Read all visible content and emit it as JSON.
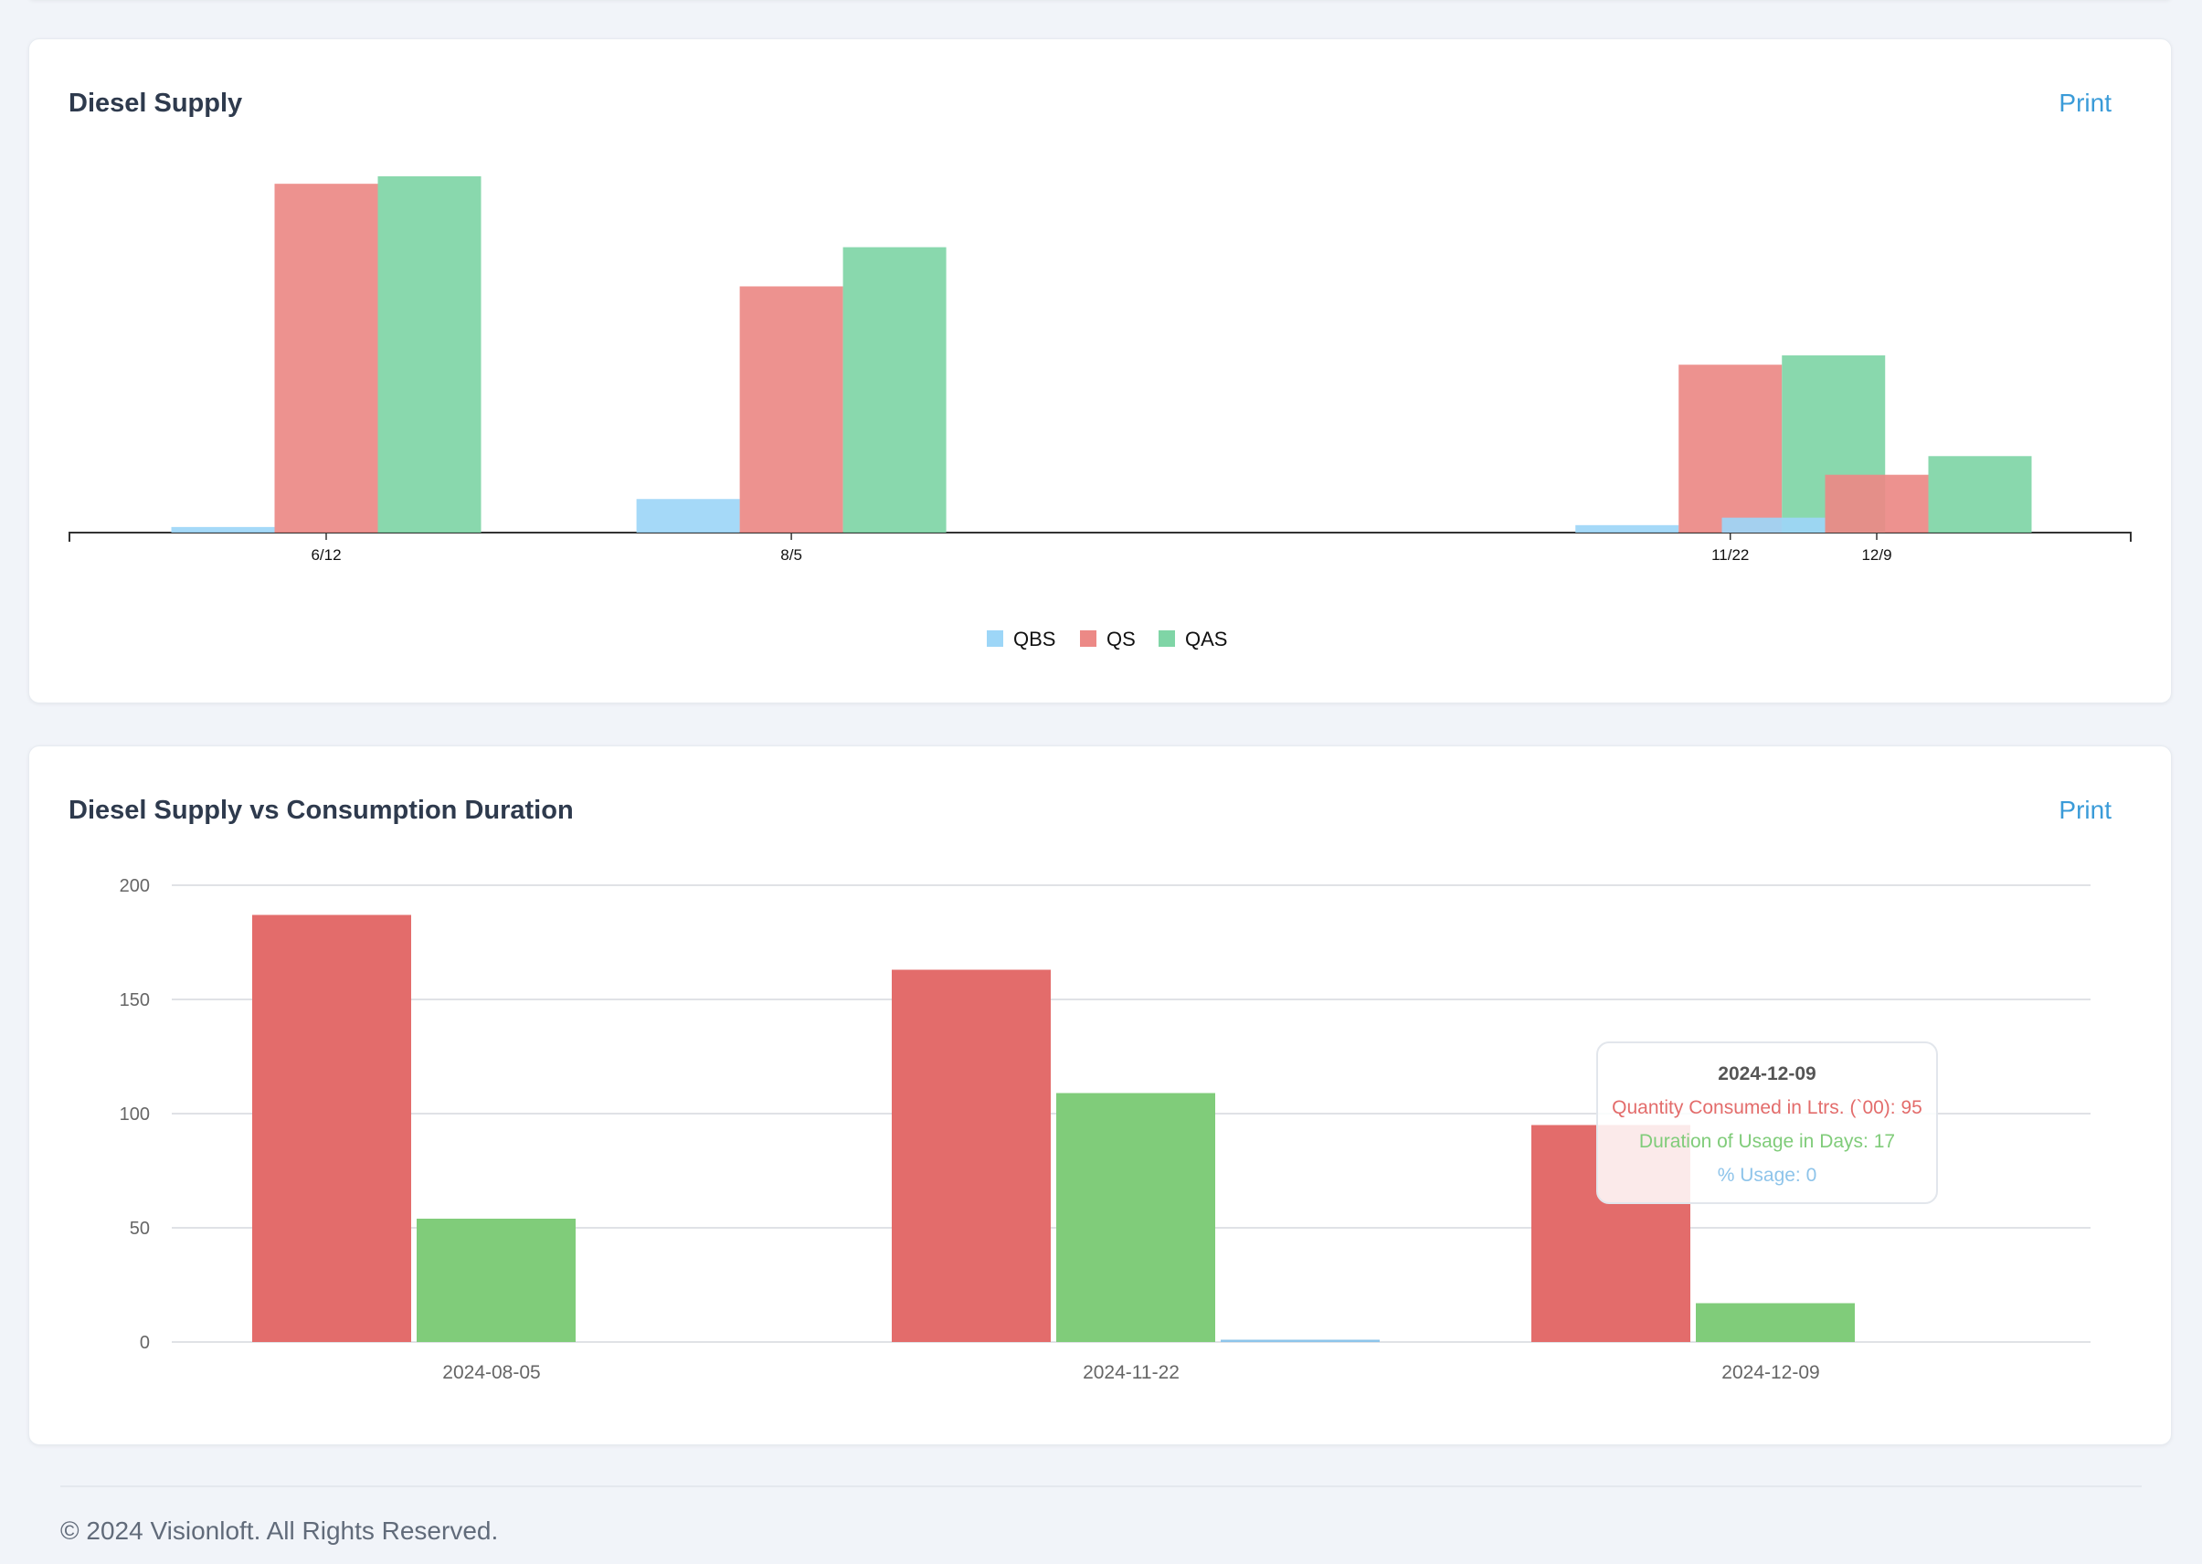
{
  "cards": {
    "supply": {
      "title": "Diesel Supply",
      "print_label": "Print"
    },
    "consumption": {
      "title": "Diesel Supply vs Consumption Duration",
      "print_label": "Print"
    }
  },
  "chart_data": [
    {
      "type": "bar",
      "title": "Diesel Supply",
      "categories": [
        "6/12",
        "8/5",
        "11/22",
        "12/9"
      ],
      "series": [
        {
          "name": "QBS",
          "values": [
            3,
            18,
            4,
            8
          ],
          "color": "#9dd6f7"
        },
        {
          "name": "QS",
          "values": [
            187,
            132,
            90,
            31
          ],
          "color": "#ec8986"
        },
        {
          "name": "QAS",
          "values": [
            191,
            153,
            95,
            41
          ],
          "color": "#7fd5a6"
        }
      ],
      "legend_position": "bottom",
      "grid": false
    },
    {
      "type": "bar",
      "title": "Diesel Supply vs Consumption Duration",
      "categories": [
        "2024-08-05",
        "2024-11-22",
        "2024-12-09"
      ],
      "series": [
        {
          "name": "Quantity Consumed in Ltrs. (`00)",
          "values": [
            187,
            163,
            95
          ],
          "color": "#e36c6b"
        },
        {
          "name": "Duration of Usage in Days",
          "values": [
            54,
            109,
            17
          ],
          "color": "#80cc7a"
        },
        {
          "name": "% Usage",
          "values": [
            0,
            1,
            0
          ],
          "color": "#8ec4ea"
        }
      ],
      "ylim": [
        0,
        200
      ],
      "yticks": [
        0,
        50,
        100,
        150,
        200
      ],
      "grid": true,
      "tooltip": {
        "title": "2024-12-09",
        "lines": [
          {
            "text": "Quantity Consumed in Ltrs. (`00): 95",
            "color": "#e36c6b"
          },
          {
            "text": "Duration of Usage in Days: 17",
            "color": "#80cc7a"
          },
          {
            "text": "% Usage: 0",
            "color": "#8ec4ea"
          }
        ]
      }
    }
  ],
  "footer": {
    "text": "© 2024 Visionloft. All Rights Reserved."
  }
}
